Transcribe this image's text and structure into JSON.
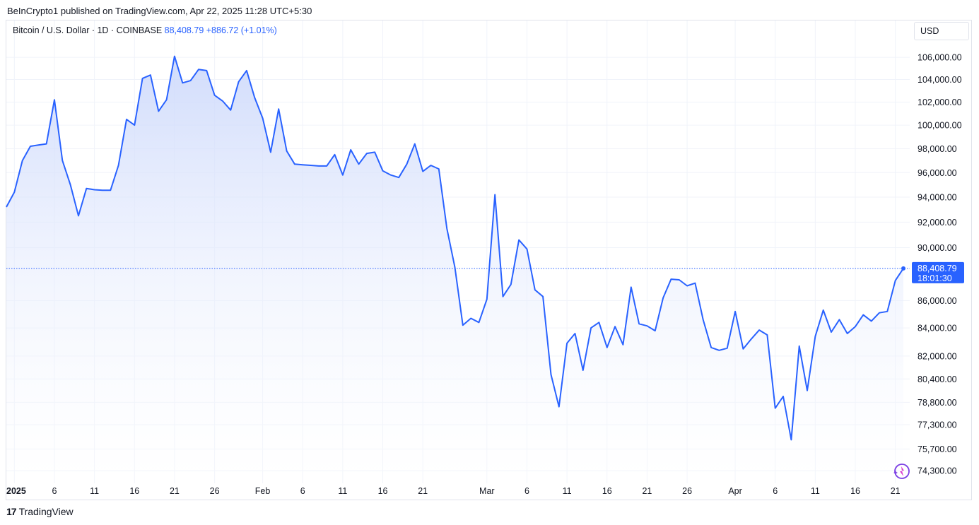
{
  "header": {
    "publisher": "BeInCrypto1 published on TradingView.com, Apr 22, 2025 11:28 UTC+5:30"
  },
  "legend": {
    "symbol": "Bitcoin / U.S. Dollar · 1D · COINBASE",
    "price": "88,408.79",
    "change": "+886.72 (+1.01%)"
  },
  "currency_label": "USD",
  "footer": {
    "brand": "TradingView",
    "logo_icon": "tradingview-logo-icon"
  },
  "colors": {
    "line": "#2962ff",
    "fill_top": "#c9d6fb",
    "price_tag": "#2962ff",
    "grid": "#f0f3fa"
  },
  "chart_data": {
    "type": "area",
    "title": "",
    "xlabel": "",
    "ylabel": "",
    "y_scale": "log",
    "ylim": [
      73500,
      107500
    ],
    "xlim": [
      "2024-12-31",
      "2025-04-22"
    ],
    "x_tick_labels": [
      "2025",
      "6",
      "11",
      "16",
      "21",
      "26",
      "Feb",
      "6",
      "11",
      "16",
      "21",
      "Mar",
      "6",
      "11",
      "16",
      "21",
      "26",
      "Apr",
      "6",
      "11",
      "16",
      "21"
    ],
    "x_tick_dates": [
      "2025-01-01",
      "2025-01-06",
      "2025-01-11",
      "2025-01-16",
      "2025-01-21",
      "2025-01-26",
      "2025-02-01",
      "2025-02-06",
      "2025-02-11",
      "2025-02-16",
      "2025-02-21",
      "2025-03-01",
      "2025-03-06",
      "2025-03-11",
      "2025-03-16",
      "2025-03-21",
      "2025-03-26",
      "2025-04-01",
      "2025-04-06",
      "2025-04-11",
      "2025-04-16",
      "2025-04-21"
    ],
    "y_tick_labels": [
      "106,000.00",
      "104,000.00",
      "102,000.00",
      "100,000.00",
      "98,000.00",
      "96,000.00",
      "94,000.00",
      "92,000.00",
      "90,000.00",
      "86,000.00",
      "84,000.00",
      "82,000.00",
      "80,400.00",
      "78,800.00",
      "77,300.00",
      "75,700.00",
      "74,300.00"
    ],
    "y_tick_values": [
      106000,
      104000,
      102000,
      100000,
      98000,
      96000,
      94000,
      92000,
      90000,
      86000,
      84000,
      82000,
      80400,
      78800,
      77300,
      75700,
      74300
    ],
    "last_price": {
      "value": 88408.79,
      "label": "88,408.79",
      "countdown": "18:01:30"
    },
    "series": [
      {
        "x": [
          "2024-12-31",
          "2025-01-01",
          "2025-01-02",
          "2025-01-03",
          "2025-01-04",
          "2025-01-05",
          "2025-01-06",
          "2025-01-07",
          "2025-01-08",
          "2025-01-09",
          "2025-01-10",
          "2025-01-11",
          "2025-01-12",
          "2025-01-13",
          "2025-01-14",
          "2025-01-15",
          "2025-01-16",
          "2025-01-17",
          "2025-01-18",
          "2025-01-19",
          "2025-01-20",
          "2025-01-21",
          "2025-01-22",
          "2025-01-23",
          "2025-01-24",
          "2025-01-25",
          "2025-01-26",
          "2025-01-27",
          "2025-01-28",
          "2025-01-29",
          "2025-01-30",
          "2025-01-31",
          "2025-02-01",
          "2025-02-02",
          "2025-02-03",
          "2025-02-04",
          "2025-02-05",
          "2025-02-06",
          "2025-02-07",
          "2025-02-08",
          "2025-02-09",
          "2025-02-10",
          "2025-02-11",
          "2025-02-12",
          "2025-02-13",
          "2025-02-14",
          "2025-02-15",
          "2025-02-16",
          "2025-02-17",
          "2025-02-18",
          "2025-02-19",
          "2025-02-20",
          "2025-02-21",
          "2025-02-22",
          "2025-02-23",
          "2025-02-24",
          "2025-02-25",
          "2025-02-26",
          "2025-02-27",
          "2025-02-28",
          "2025-03-01",
          "2025-03-02",
          "2025-03-03",
          "2025-03-04",
          "2025-03-05",
          "2025-03-06",
          "2025-03-07",
          "2025-03-08",
          "2025-03-09",
          "2025-03-10",
          "2025-03-11",
          "2025-03-12",
          "2025-03-13",
          "2025-03-14",
          "2025-03-15",
          "2025-03-16",
          "2025-03-17",
          "2025-03-18",
          "2025-03-19",
          "2025-03-20",
          "2025-03-21",
          "2025-03-22",
          "2025-03-23",
          "2025-03-24",
          "2025-03-25",
          "2025-03-26",
          "2025-03-27",
          "2025-03-28",
          "2025-03-29",
          "2025-03-30",
          "2025-03-31",
          "2025-04-01",
          "2025-04-02",
          "2025-04-03",
          "2025-04-04",
          "2025-04-05",
          "2025-04-06",
          "2025-04-07",
          "2025-04-08",
          "2025-04-09",
          "2025-04-10",
          "2025-04-11",
          "2025-04-12",
          "2025-04-13",
          "2025-04-14",
          "2025-04-15",
          "2025-04-16",
          "2025-04-17",
          "2025-04-18",
          "2025-04-19",
          "2025-04-20",
          "2025-04-21",
          "2025-04-22"
        ],
        "values": [
          93200,
          94400,
          97000,
          98200,
          98300,
          98400,
          102200,
          97000,
          95000,
          92500,
          94700,
          94600,
          94550,
          94550,
          96600,
          100500,
          100000,
          104100,
          104400,
          101200,
          102200,
          106100,
          103700,
          103900,
          104900,
          104800,
          102600,
          102100,
          101300,
          103800,
          104800,
          102400,
          100600,
          97700,
          101400,
          97800,
          96700,
          96650,
          96600,
          96550,
          96550,
          97500,
          95800,
          97900,
          96700,
          97600,
          97700,
          96150,
          95800,
          95600,
          96700,
          98400,
          96100,
          96600,
          96300,
          91500,
          88500,
          84200,
          84700,
          84400,
          86100,
          94200,
          86300,
          87200,
          90600,
          89900,
          86800,
          86300,
          80700,
          78500,
          82900,
          83600,
          81000,
          84000,
          84400,
          82600,
          84100,
          82800,
          87000,
          84300,
          84150,
          83800,
          86200,
          87600,
          87550,
          87100,
          87300,
          84600,
          82600,
          82400,
          82550,
          85200,
          82500,
          83200,
          83850,
          83500,
          78400,
          79200,
          76300,
          82700,
          79600,
          83400,
          85300,
          83700,
          84600,
          83600,
          84100,
          84950,
          84500,
          85100,
          85200,
          87500,
          88408.79
        ]
      }
    ]
  }
}
